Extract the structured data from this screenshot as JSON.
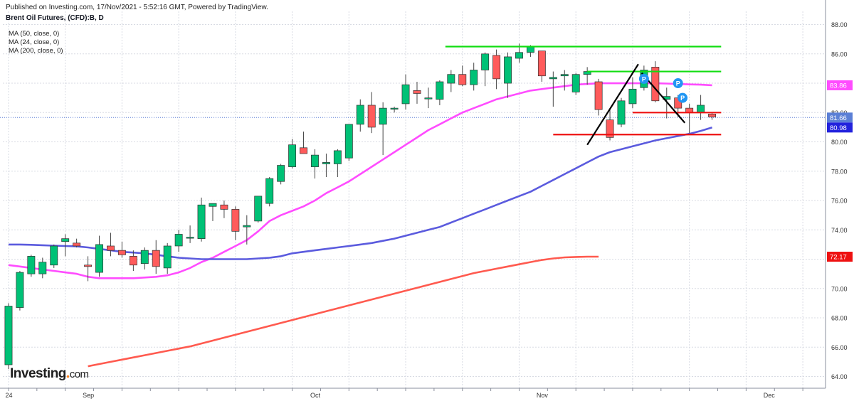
{
  "header": {
    "published": "Published on Investing.com, 17/Nov/2021 - 5:52:16 GMT, Powered by TradingView.",
    "symbol": "Brent Oil Futures, (CFD):B, D"
  },
  "legend": [
    {
      "label": "MA (50, close, 0)"
    },
    {
      "label": "MA (24, close, 0)"
    },
    {
      "label": "MA (200, close, 0)"
    }
  ],
  "logo": {
    "word": "Investing",
    "dot": ".",
    "suffix": "com"
  },
  "colors": {
    "up": "#00c176",
    "down": "#ff5b5b",
    "ma24": "#ff4cff",
    "ma50": "#5b5bde",
    "ma200": "#ff5a4f",
    "support_green": "#11dd11",
    "resistance_red": "#ee1111",
    "trendline": "#000000",
    "pivot": "#2196f3",
    "last_price_line": "#5b7fd6"
  },
  "chart_data": {
    "type": "candlestick",
    "title": "Brent Oil Futures, (CFD):B, D",
    "ylim": [
      63.2,
      88.9
    ],
    "y_ticks": [
      "64.00",
      "66.00",
      "68.00",
      "70.00",
      "72.00",
      "74.00",
      "76.00",
      "78.00",
      "80.00",
      "82.00",
      "84.00",
      "86.00",
      "88.00"
    ],
    "x_ticks": [
      "24",
      "Sep",
      "Oct",
      "Nov",
      "Dec"
    ],
    "x_tick_bars": [
      0,
      7,
      27,
      47,
      67
    ],
    "x_range_bars": [
      -0.5,
      72
    ],
    "price_labels": [
      {
        "text": "83.86",
        "value": 83.86,
        "color": "#ff4cff"
      },
      {
        "text": "81.66",
        "value": 81.66,
        "color": "#5b7fd6"
      },
      {
        "text": "80.98",
        "value": 80.98,
        "color": "#2222dd"
      },
      {
        "text": "72.17",
        "value": 72.17,
        "color": "#ee1111"
      }
    ],
    "last_price": 81.66,
    "candles": [
      {
        "o": 64.8,
        "h": 69.0,
        "l": 64.5,
        "c": 68.8
      },
      {
        "o": 68.7,
        "h": 71.2,
        "l": 68.5,
        "c": 71.1
      },
      {
        "o": 71.0,
        "h": 72.3,
        "l": 70.8,
        "c": 72.2
      },
      {
        "o": 71.0,
        "h": 72.1,
        "l": 70.7,
        "c": 71.8
      },
      {
        "o": 71.6,
        "h": 73.0,
        "l": 71.4,
        "c": 72.9
      },
      {
        "o": 73.2,
        "h": 73.7,
        "l": 72.2,
        "c": 73.4
      },
      {
        "o": 73.1,
        "h": 73.4,
        "l": 72.8,
        "c": 72.9
      },
      {
        "o": 71.6,
        "h": 72.2,
        "l": 70.5,
        "c": 71.5
      },
      {
        "o": 71.1,
        "h": 73.6,
        "l": 70.8,
        "c": 73.0
      },
      {
        "o": 72.9,
        "h": 73.8,
        "l": 72.2,
        "c": 72.6
      },
      {
        "o": 72.6,
        "h": 73.2,
        "l": 72.1,
        "c": 72.3
      },
      {
        "o": 72.2,
        "h": 72.6,
        "l": 71.2,
        "c": 71.6
      },
      {
        "o": 71.7,
        "h": 72.8,
        "l": 71.3,
        "c": 72.6
      },
      {
        "o": 72.6,
        "h": 73.3,
        "l": 71.0,
        "c": 71.5
      },
      {
        "o": 71.4,
        "h": 73.1,
        "l": 71.0,
        "c": 72.9
      },
      {
        "o": 72.9,
        "h": 74.0,
        "l": 72.5,
        "c": 73.7
      },
      {
        "o": 73.5,
        "h": 74.3,
        "l": 73.1,
        "c": 73.5
      },
      {
        "o": 73.4,
        "h": 76.2,
        "l": 73.2,
        "c": 75.7
      },
      {
        "o": 75.6,
        "h": 75.8,
        "l": 74.6,
        "c": 75.8
      },
      {
        "o": 75.7,
        "h": 76.0,
        "l": 74.8,
        "c": 75.4
      },
      {
        "o": 75.4,
        "h": 75.6,
        "l": 73.3,
        "c": 73.9
      },
      {
        "o": 74.2,
        "h": 75.0,
        "l": 73.0,
        "c": 74.3
      },
      {
        "o": 74.6,
        "h": 76.3,
        "l": 74.5,
        "c": 76.3
      },
      {
        "o": 75.8,
        "h": 77.6,
        "l": 75.6,
        "c": 77.5
      },
      {
        "o": 77.3,
        "h": 78.5,
        "l": 77.1,
        "c": 78.4
      },
      {
        "o": 78.3,
        "h": 80.2,
        "l": 78.2,
        "c": 79.8
      },
      {
        "o": 79.6,
        "h": 80.7,
        "l": 79.3,
        "c": 79.2
      },
      {
        "o": 78.3,
        "h": 79.5,
        "l": 77.5,
        "c": 79.1
      },
      {
        "o": 78.5,
        "h": 79.2,
        "l": 77.6,
        "c": 78.6
      },
      {
        "o": 78.5,
        "h": 79.5,
        "l": 77.6,
        "c": 79.4
      },
      {
        "o": 78.9,
        "h": 81.2,
        "l": 78.7,
        "c": 81.2
      },
      {
        "o": 81.2,
        "h": 82.9,
        "l": 80.7,
        "c": 82.5
      },
      {
        "o": 82.5,
        "h": 83.4,
        "l": 80.6,
        "c": 81.0
      },
      {
        "o": 81.2,
        "h": 82.7,
        "l": 79.1,
        "c": 82.3
      },
      {
        "o": 82.3,
        "h": 82.4,
        "l": 82.0,
        "c": 82.3
      },
      {
        "o": 82.6,
        "h": 84.6,
        "l": 82.2,
        "c": 83.9
      },
      {
        "o": 83.5,
        "h": 84.1,
        "l": 82.6,
        "c": 83.3
      },
      {
        "o": 83.0,
        "h": 83.7,
        "l": 82.3,
        "c": 83.0
      },
      {
        "o": 82.9,
        "h": 84.2,
        "l": 82.5,
        "c": 84.1
      },
      {
        "o": 84.0,
        "h": 84.9,
        "l": 83.4,
        "c": 84.6
      },
      {
        "o": 84.6,
        "h": 85.2,
        "l": 83.8,
        "c": 83.9
      },
      {
        "o": 83.9,
        "h": 85.4,
        "l": 83.5,
        "c": 84.9
      },
      {
        "o": 84.9,
        "h": 86.1,
        "l": 83.8,
        "c": 86.0
      },
      {
        "o": 85.9,
        "h": 86.3,
        "l": 83.6,
        "c": 84.3
      },
      {
        "o": 84.0,
        "h": 86.1,
        "l": 83.0,
        "c": 85.8
      },
      {
        "o": 85.7,
        "h": 86.7,
        "l": 85.4,
        "c": 86.1
      },
      {
        "o": 86.1,
        "h": 86.6,
        "l": 85.8,
        "c": 86.5
      },
      {
        "o": 86.2,
        "h": 86.2,
        "l": 84.1,
        "c": 84.5
      },
      {
        "o": 84.3,
        "h": 84.8,
        "l": 82.4,
        "c": 84.4
      },
      {
        "o": 84.5,
        "h": 84.9,
        "l": 83.5,
        "c": 84.6
      },
      {
        "o": 83.4,
        "h": 84.7,
        "l": 83.2,
        "c": 84.6
      },
      {
        "o": 84.6,
        "h": 85.1,
        "l": 83.9,
        "c": 84.8
      },
      {
        "o": 84.1,
        "h": 84.3,
        "l": 81.8,
        "c": 82.2
      },
      {
        "o": 81.5,
        "h": 82.2,
        "l": 80.1,
        "c": 80.3
      },
      {
        "o": 81.2,
        "h": 83.0,
        "l": 81.0,
        "c": 82.8
      },
      {
        "o": 82.6,
        "h": 84.4,
        "l": 82.3,
        "c": 83.6
      },
      {
        "o": 83.7,
        "h": 85.2,
        "l": 83.5,
        "c": 84.9
      },
      {
        "o": 85.1,
        "h": 85.5,
        "l": 82.7,
        "c": 82.8
      },
      {
        "o": 82.9,
        "h": 83.7,
        "l": 81.6,
        "c": 83.1
      },
      {
        "o": 83.0,
        "h": 83.2,
        "l": 81.7,
        "c": 82.3
      },
      {
        "o": 82.3,
        "h": 82.6,
        "l": 80.6,
        "c": 82.0
      },
      {
        "o": 82.0,
        "h": 83.2,
        "l": 81.5,
        "c": 82.5
      },
      {
        "o": 81.9,
        "h": 82.0,
        "l": 81.5,
        "c": 81.7
      }
    ],
    "series": [
      {
        "name": "MA (24, close, 0)",
        "color": "#ff4cff",
        "start_bar": 0,
        "values": [
          71.6,
          71.5,
          71.4,
          71.3,
          71.2,
          71.1,
          71.0,
          70.8,
          70.7,
          70.7,
          70.7,
          70.7,
          70.75,
          70.8,
          70.9,
          71.1,
          71.4,
          71.8,
          72.1,
          72.5,
          72.9,
          73.3,
          73.9,
          74.6,
          75.0,
          75.3,
          75.6,
          76.0,
          76.5,
          76.9,
          77.3,
          77.8,
          78.3,
          78.8,
          79.3,
          79.8,
          80.3,
          80.8,
          81.2,
          81.6,
          82.0,
          82.3,
          82.6,
          82.9,
          83.1,
          83.3,
          83.5,
          83.6,
          83.7,
          83.8,
          83.9,
          83.95,
          84.0,
          84.0,
          84.0,
          84.0,
          84.0,
          84.0,
          83.98,
          83.95,
          83.92,
          83.9,
          83.86
        ]
      },
      {
        "name": "MA (50, close, 0)",
        "color": "#5b5bde",
        "start_bar": 0,
        "values": [
          73.0,
          73.0,
          72.98,
          72.95,
          72.92,
          72.9,
          72.88,
          72.8,
          72.7,
          72.6,
          72.5,
          72.45,
          72.4,
          72.3,
          72.2,
          72.1,
          72.05,
          72.0,
          72.0,
          72.0,
          72.0,
          72.0,
          72.05,
          72.1,
          72.2,
          72.4,
          72.5,
          72.6,
          72.7,
          72.8,
          72.9,
          73.0,
          73.1,
          73.25,
          73.4,
          73.6,
          73.8,
          74.0,
          74.2,
          74.5,
          74.8,
          75.1,
          75.4,
          75.7,
          76.0,
          76.3,
          76.6,
          77.0,
          77.4,
          77.8,
          78.2,
          78.6,
          79.0,
          79.3,
          79.5,
          79.7,
          79.9,
          80.1,
          80.25,
          80.4,
          80.55,
          80.75,
          80.98
        ]
      },
      {
        "name": "MA (200, close, 0)",
        "color": "#ff5a4f",
        "start_bar": 7,
        "values": [
          64.7,
          64.85,
          65.0,
          65.15,
          65.3,
          65.45,
          65.6,
          65.75,
          65.9,
          66.05,
          66.25,
          66.45,
          66.65,
          66.85,
          67.05,
          67.25,
          67.45,
          67.65,
          67.85,
          68.05,
          68.25,
          68.45,
          68.65,
          68.85,
          69.05,
          69.25,
          69.45,
          69.65,
          69.85,
          70.05,
          70.25,
          70.45,
          70.65,
          70.85,
          71.05,
          71.2,
          71.35,
          71.5,
          71.65,
          71.8,
          71.95,
          72.05,
          72.12,
          72.15,
          72.17,
          72.17
        ]
      }
    ],
    "support_resistance": [
      {
        "color": "green",
        "y": 86.5,
        "x1": 38.5,
        "x2": 62.8
      },
      {
        "color": "green",
        "y": 84.8,
        "x1": 51.0,
        "x2": 62.8
      },
      {
        "color": "red",
        "y": 82.0,
        "x1": 55.0,
        "x2": 62.8
      },
      {
        "color": "red",
        "y": 80.5,
        "x1": 48.0,
        "x2": 62.8
      }
    ],
    "trendlines": [
      {
        "x1": 51.0,
        "y1": 79.8,
        "x2": 55.5,
        "y2": 85.3
      },
      {
        "x1": 55.8,
        "y1": 84.7,
        "x2": 59.6,
        "y2": 81.3
      }
    ],
    "pivots": [
      {
        "label": "P",
        "x": 56.0,
        "y": 84.3
      },
      {
        "label": "P",
        "x": 59.0,
        "y": 84.0
      },
      {
        "label": "P",
        "x": 59.4,
        "y": 83.0
      }
    ]
  }
}
